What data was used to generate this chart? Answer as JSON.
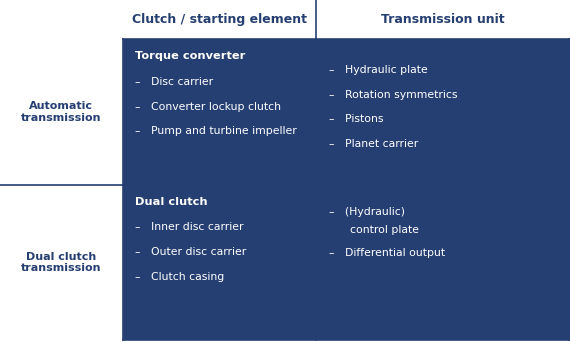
{
  "bg_color": "#ffffff",
  "dark_blue": "#263f72",
  "cell_color": "#263f72",
  "header_text_color": "#263f72",
  "cell_text_color": "#ffffff",
  "row_label_color": "#263f72",
  "col_headers": [
    "Clutch / starting element",
    "Transmission unit"
  ],
  "row_labels": [
    "Automatic\ntransmission",
    "Dual clutch\ntransmission"
  ],
  "cell_bold_titles": [
    "Torque converter",
    "Dual clutch"
  ],
  "cell_bullet_items_00": [
    "–   Disc carrier",
    "–   Converter lockup clutch",
    "–   Pump and turbine impeller"
  ],
  "cell_bullet_items_01": [
    "–   Hydraulic plate",
    "–   Rotation symmetrics",
    "–   Pistons",
    "–   Planet carrier"
  ],
  "cell_bullet_items_10": [
    "–   Inner disc carrier",
    "–   Outer disc carrier",
    "–   Clutch casing"
  ],
  "cell_bullet_items_11_line1": "–   (Hydraulic)",
  "cell_bullet_items_11_line2": "      control plate",
  "cell_bullet_items_11_line3": "–   Differential output",
  "fig_width": 5.7,
  "fig_height": 3.42,
  "dpi": 100
}
